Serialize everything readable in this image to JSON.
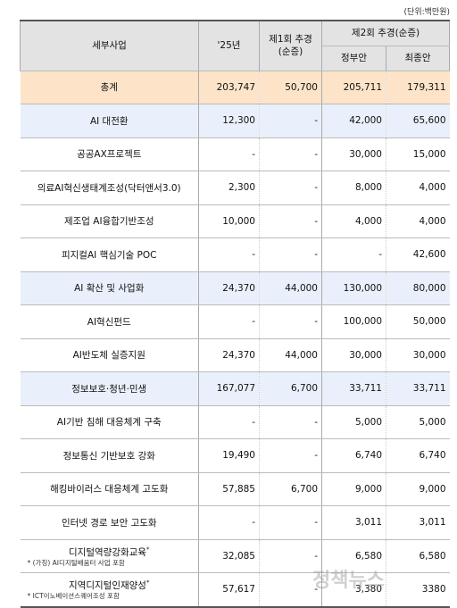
{
  "unit": "(단위:백만원)",
  "header": {
    "name": "세부사업",
    "y25": "'25년",
    "supp1_line1": "제1회 추경",
    "supp1_line2": "(순증)",
    "supp2": "제2회 추경(순증)",
    "gov": "정부안",
    "final": "최종안"
  },
  "rows": [
    {
      "style": "total",
      "cells": [
        "총계",
        "203,747",
        "50,700",
        "205,711",
        "179,311"
      ]
    },
    {
      "style": "group",
      "cells": [
        "AI 대전환",
        "12,300",
        "-",
        "42,000",
        "65,600"
      ]
    },
    {
      "style": "item",
      "cells": [
        "공공AX프로젝트",
        "-",
        "-",
        "30,000",
        "15,000"
      ]
    },
    {
      "style": "item",
      "cells": [
        "의료AI혁신생태계조성(닥터앤서3.0)",
        "2,300",
        "-",
        "8,000",
        "4,000"
      ]
    },
    {
      "style": "item",
      "cells": [
        "제조업 AI융합기반조성",
        "10,000",
        "-",
        "4,000",
        "4,000"
      ]
    },
    {
      "style": "item",
      "cells": [
        "피지컬AI 핵심기술 POC",
        "-",
        "-",
        "-",
        "42,600"
      ]
    },
    {
      "style": "group",
      "cells": [
        "AI 확산 및 사업화",
        "24,370",
        "44,000",
        "130,000",
        "80,000"
      ]
    },
    {
      "style": "item",
      "cells": [
        "AI혁신펀드",
        "-",
        "-",
        "100,000",
        "50,000"
      ]
    },
    {
      "style": "item",
      "cells": [
        "AI반도체 실증지원",
        "24,370",
        "44,000",
        "30,000",
        "30,000"
      ]
    },
    {
      "style": "group",
      "cells": [
        "정보보호·청년·민생",
        "167,077",
        "6,700",
        "33,711",
        "33,711"
      ]
    },
    {
      "style": "item",
      "cells": [
        "AI기반 침해 대응체계 구축",
        "-",
        "-",
        "5,000",
        "5,000"
      ]
    },
    {
      "style": "item",
      "cells": [
        "정보통신 기반보호 강화",
        "19,490",
        "-",
        "6,740",
        "6,740"
      ]
    },
    {
      "style": "item",
      "cells": [
        "해킹바이러스 대응체계 고도화",
        "57,885",
        "6,700",
        "9,000",
        "9,000"
      ]
    },
    {
      "style": "item",
      "cells": [
        "인터넷 경로 보안 고도화",
        "-",
        "-",
        "3,011",
        "3,011"
      ]
    },
    {
      "style": "item",
      "cells": [
        "디지털역량강화교육",
        "32,085",
        "-",
        "6,580",
        "6,580"
      ],
      "marker": "*",
      "note": "* (가칭) AI디지털배움터 사업 포함"
    },
    {
      "style": "item",
      "cells": [
        "지역디지털인재양성",
        "57,617",
        "-",
        "3,380",
        "3380"
      ],
      "marker": "*",
      "note": "* ICT이노베이션스퀘어조성 포함"
    }
  ],
  "watermark": "정책뉴스"
}
